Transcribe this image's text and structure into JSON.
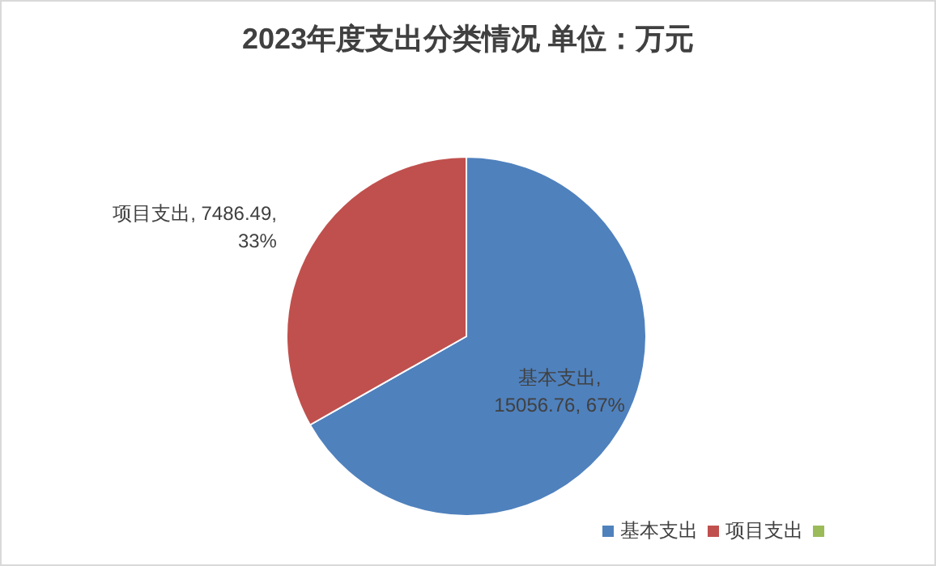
{
  "chart_data": {
    "type": "pie",
    "title": "2023年度支出分类情况  单位：万元",
    "categories": [
      "基本支出",
      "项目支出",
      null
    ],
    "values": [
      15056.76,
      7486.49,
      0
    ],
    "colors": [
      "#4f81bd",
      "#c0504d",
      "#9bbb59"
    ],
    "value_labels": [
      "基本支出, 15056.76, 67%",
      "项目支出, 7486.49, 33%",
      null
    ],
    "legend": "bottom right"
  }
}
